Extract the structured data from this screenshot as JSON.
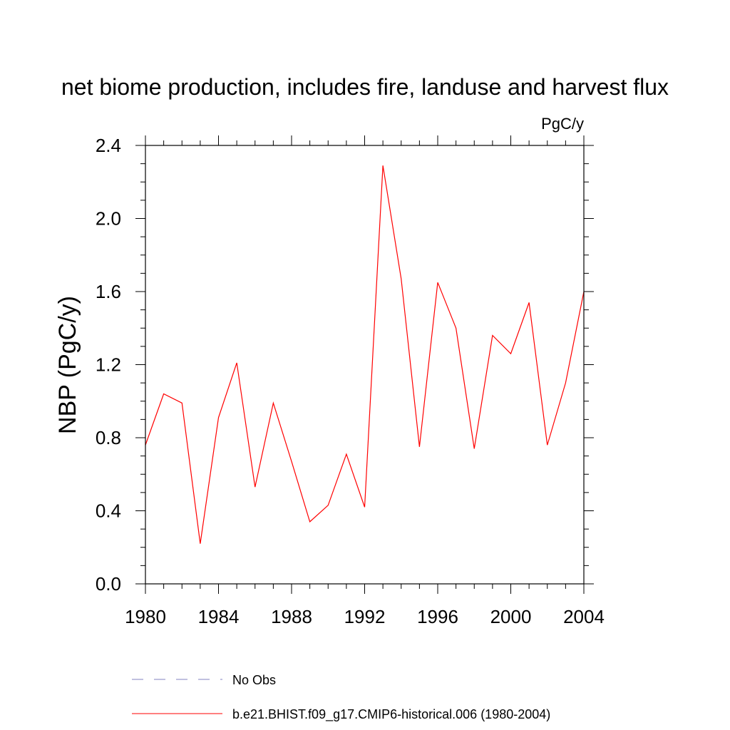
{
  "chart_data": {
    "type": "line",
    "title": "net biome production, includes fire, landuse and harvest flux",
    "units_label": "PgC/y",
    "ylabel": "NBP  (PgC/y)",
    "xlabel": "",
    "xlim": [
      1980,
      2004
    ],
    "ylim": [
      0.0,
      2.4
    ],
    "x_ticks": [
      1980,
      1984,
      1988,
      1992,
      1996,
      2000,
      2004
    ],
    "y_ticks": [
      0.0,
      0.4,
      0.8,
      1.2,
      1.6,
      2.0,
      2.4
    ],
    "y_tick_labels": [
      "0.0",
      "0.4",
      "0.8",
      "1.2",
      "1.6",
      "2.0",
      "2.4"
    ],
    "grid": false,
    "x": [
      1980,
      1981,
      1982,
      1983,
      1984,
      1985,
      1986,
      1987,
      1988,
      1989,
      1990,
      1991,
      1992,
      1993,
      1994,
      1995,
      1996,
      1997,
      1998,
      1999,
      2000,
      2001,
      2002,
      2003,
      2004
    ],
    "series": [
      {
        "name": "b.e21.BHIST.f09_g17.CMIP6-historical.006 (1980-2004)",
        "color": "#ff0000",
        "dash": "solid",
        "values": [
          0.76,
          1.04,
          0.99,
          0.22,
          0.91,
          1.21,
          0.53,
          0.99,
          0.67,
          0.34,
          0.43,
          0.71,
          0.42,
          2.29,
          1.67,
          0.75,
          1.65,
          1.4,
          0.74,
          1.36,
          1.26,
          1.54,
          0.76,
          1.1,
          1.6
        ]
      }
    ],
    "legend": {
      "placement": "bottom",
      "entries": [
        {
          "label": "No Obs",
          "color": "#8080c0",
          "dash": "dashed"
        },
        {
          "label": "b.e21.BHIST.f09_g17.CMIP6-historical.006 (1980-2004)",
          "color": "#ff0000",
          "dash": "solid"
        }
      ]
    }
  }
}
